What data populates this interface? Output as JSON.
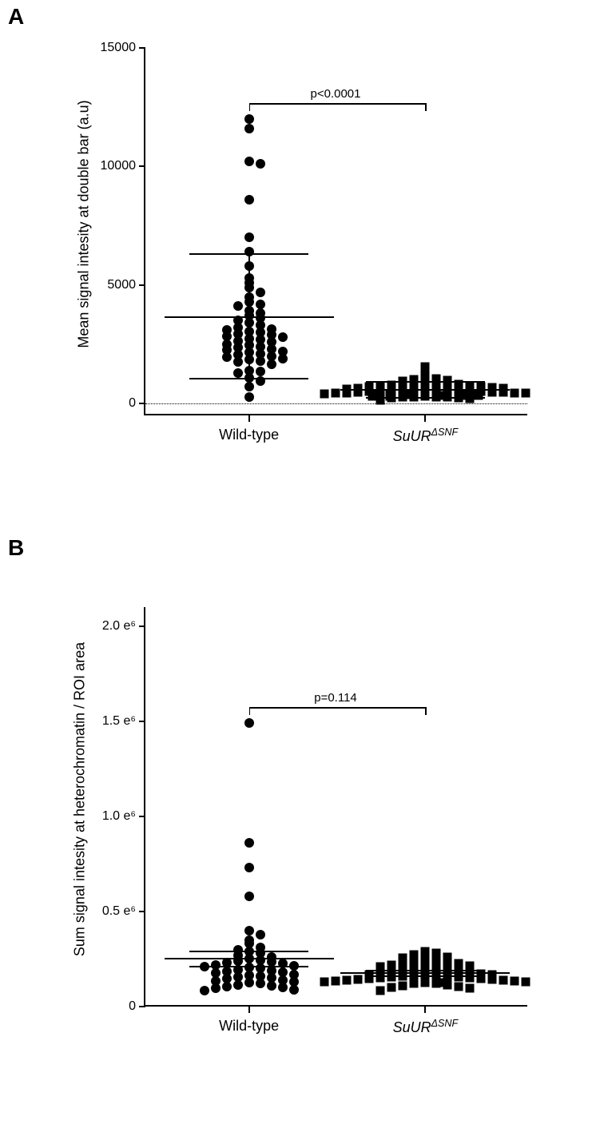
{
  "panelA": {
    "label": "A",
    "type": "scatter",
    "ylabel": "Mean signal intesity at double bar (a.u)",
    "ylim": [
      -500,
      15000
    ],
    "yticks": [
      0,
      5000,
      10000,
      15000
    ],
    "ytick_labels": [
      "0",
      "5000",
      "10000",
      "15000"
    ],
    "p_value": "p<0.0001",
    "marker_size": 12,
    "colors": {
      "points": "#000000",
      "axes": "#000000",
      "background": "#ffffff"
    },
    "groups": [
      {
        "label_html": "Wild-type",
        "marker": "circle",
        "mean": 3650,
        "sd_upper": 6300,
        "sd_lower": 1050,
        "values": [
          12000,
          11600,
          10200,
          10100,
          8600,
          7000,
          6400,
          5800,
          5300,
          5100,
          4900,
          4700,
          4500,
          4300,
          4200,
          4100,
          3900,
          3800,
          3700,
          3600,
          3500,
          3400,
          3300,
          3200,
          3150,
          3100,
          3050,
          3000,
          2950,
          2900,
          2850,
          2800,
          2750,
          2700,
          2650,
          2600,
          2500,
          2450,
          2400,
          2350,
          2300,
          2250,
          2200,
          2150,
          2100,
          2050,
          2000,
          1950,
          1900,
          1850,
          1800,
          1750,
          1650,
          1400,
          1350,
          1300,
          1100,
          950,
          700,
          280
        ]
      },
      {
        "label_html": "<span class=\"italic\">SuUR<sup>ΔSNF</sup></span>",
        "marker": "square",
        "mean": 570,
        "sd_upper": 900,
        "sd_lower": 250,
        "values": [
          1550,
          1200,
          1050,
          1000,
          980,
          950,
          920,
          900,
          880,
          850,
          820,
          800,
          780,
          760,
          740,
          720,
          700,
          680,
          660,
          640,
          620,
          600,
          590,
          580,
          570,
          560,
          550,
          540,
          530,
          520,
          510,
          500,
          490,
          480,
          470,
          460,
          450,
          440,
          430,
          420,
          410,
          400,
          390,
          380,
          370,
          360,
          350,
          340,
          330,
          320,
          310,
          300,
          290,
          280,
          270,
          260,
          250,
          240,
          200,
          150
        ]
      }
    ]
  },
  "panelB": {
    "label": "B",
    "type": "scatter",
    "ylabel": "Sum signal intesity at heterochromatin / ROI area",
    "ylim": [
      0,
      2100000
    ],
    "yticks": [
      0,
      500000,
      1000000,
      1500000,
      2000000
    ],
    "ytick_labels": [
      "0",
      "0.5 e⁶",
      "1.0 e⁶",
      "1.5 e⁶",
      "2.0 e⁶"
    ],
    "p_value": "p=0.114",
    "marker_size": 12,
    "colors": {
      "points": "#000000",
      "axes": "#000000",
      "background": "#ffffff"
    },
    "groups": [
      {
        "label_html": "Wild-type",
        "marker": "circle",
        "mean": 250000,
        "sem_upper": 290000,
        "sem_lower": 210000,
        "values": [
          1490000,
          860000,
          730000,
          580000,
          400000,
          380000,
          350000,
          330000,
          310000,
          300000,
          290000,
          280000,
          270000,
          260000,
          250000,
          245000,
          240000,
          235000,
          230000,
          225000,
          220000,
          215000,
          210000,
          205000,
          200000,
          195000,
          190000,
          185000,
          180000,
          175000,
          170000,
          165000,
          160000,
          155000,
          150000,
          145000,
          140000,
          135000,
          130000,
          125000,
          120000,
          115000,
          110000,
          105000,
          100000,
          95000,
          90000,
          85000
        ]
      },
      {
        "label_html": "<span class=\"italic\">SuUR<sup>ΔSNF</sup></span>",
        "marker": "square",
        "mean": 175000,
        "sem_upper": 190000,
        "sem_lower": 160000,
        "values": [
          290000,
          280000,
          275000,
          260000,
          255000,
          250000,
          245000,
          240000,
          235000,
          230000,
          225000,
          220000,
          215000,
          210000,
          205000,
          200000,
          195000,
          190000,
          185000,
          180000,
          178000,
          176000,
          174000,
          172000,
          170000,
          168000,
          166000,
          164000,
          162000,
          160000,
          158000,
          156000,
          154000,
          152000,
          150000,
          148000,
          146000,
          144000,
          142000,
          140000,
          138000,
          136000,
          134000,
          132000,
          130000,
          128000,
          126000,
          124000,
          122000,
          120000,
          115000,
          110000,
          105000,
          100000,
          95000,
          85000
        ]
      }
    ]
  }
}
